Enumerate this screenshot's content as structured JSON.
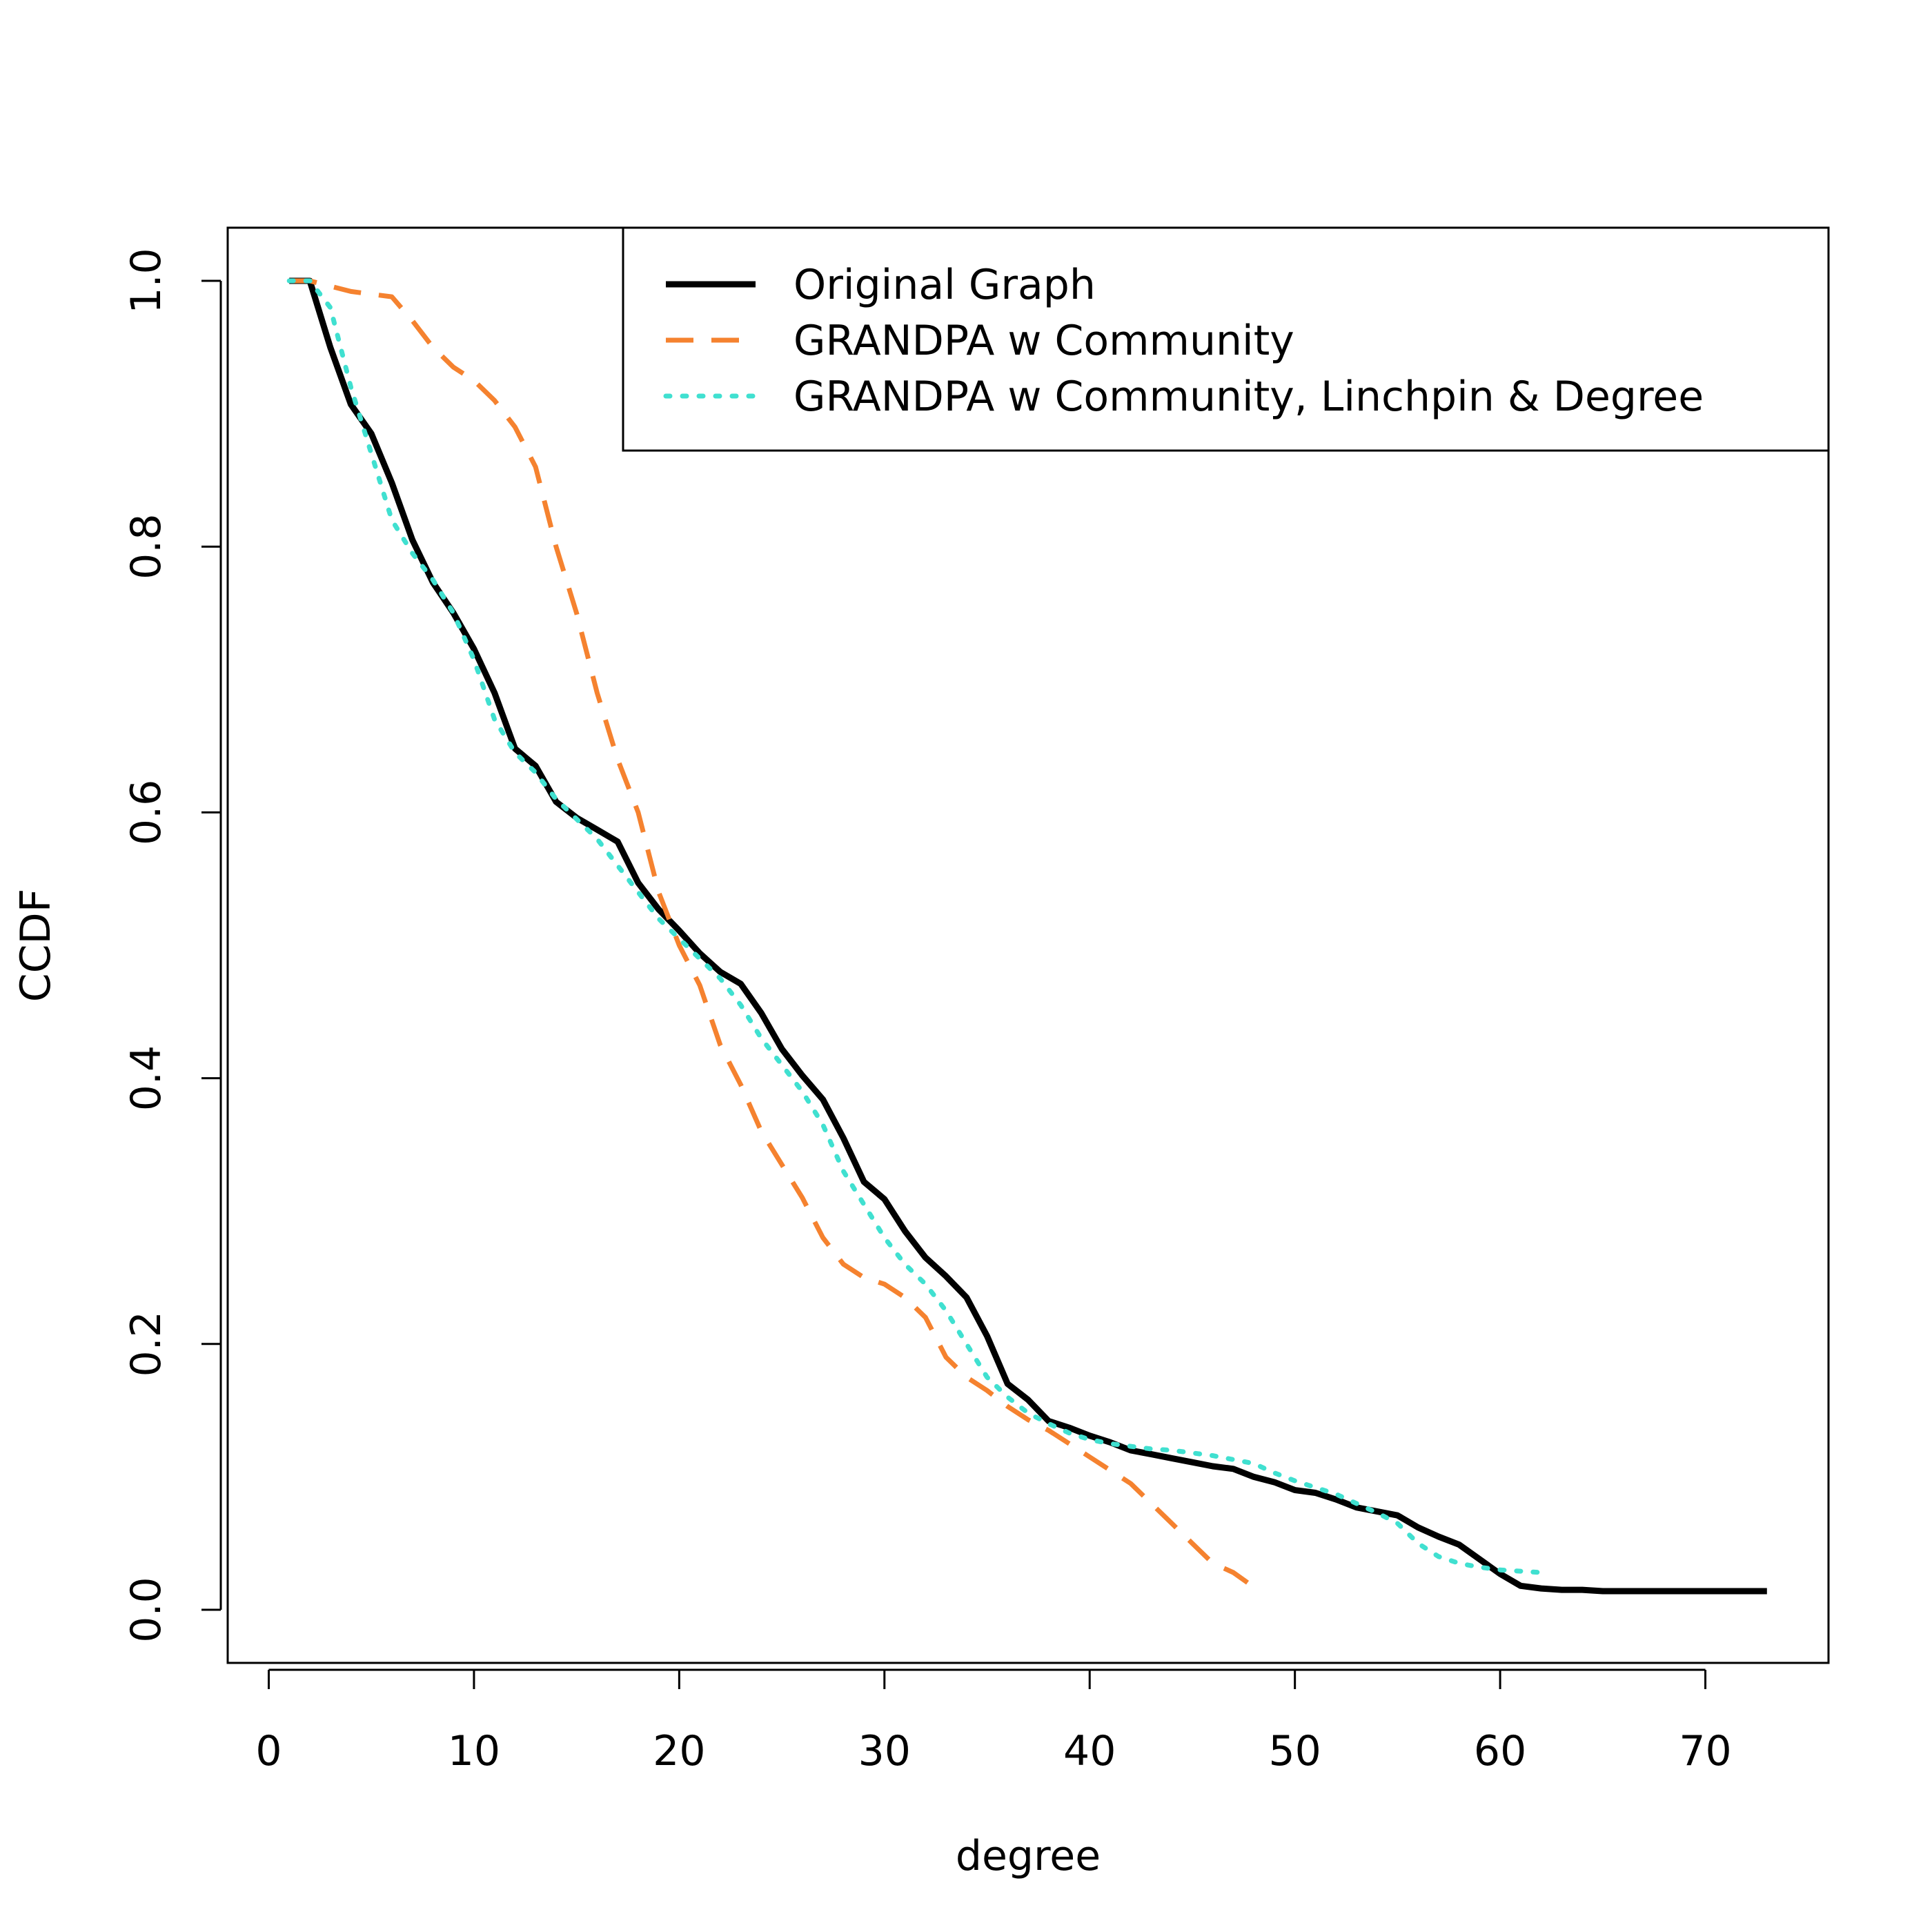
{
  "chart_data": {
    "type": "line",
    "title": "",
    "xlabel": "degree",
    "ylabel": "CCDF",
    "xlim": [
      -2,
      76
    ],
    "ylim": [
      -0.04,
      1.04
    ],
    "xticks": [
      0,
      10,
      20,
      30,
      40,
      50,
      60,
      70
    ],
    "yticks": [
      0.0,
      0.2,
      0.4,
      0.6,
      0.8,
      1.0
    ],
    "xtick_labels": [
      "0",
      "10",
      "20",
      "30",
      "40",
      "50",
      "60",
      "70"
    ],
    "ytick_labels": [
      "0.0",
      "0.2",
      "0.4",
      "0.6",
      "0.8",
      "1.0"
    ],
    "grid": false,
    "legend_position": "top-right",
    "series": [
      {
        "name": "Original Graph",
        "color": "#000000",
        "style": "solid",
        "x": [
          1,
          2,
          3,
          4,
          5,
          6,
          7,
          8,
          9,
          10,
          11,
          12,
          13,
          14,
          15,
          16,
          17,
          18,
          19,
          20,
          21,
          22,
          23,
          24,
          25,
          26,
          27,
          28,
          29,
          30,
          31,
          32,
          33,
          34,
          35,
          36,
          37,
          38,
          39,
          40,
          41,
          42,
          43,
          44,
          45,
          46,
          47,
          48,
          49,
          50,
          51,
          52,
          53,
          54,
          55,
          56,
          57,
          58,
          59,
          60,
          61,
          62,
          63,
          64,
          65,
          66,
          67,
          68,
          69,
          70,
          71,
          72,
          73
        ],
        "values": [
          1.0,
          1.0,
          0.95,
          0.907,
          0.885,
          0.848,
          0.805,
          0.773,
          0.75,
          0.723,
          0.69,
          0.648,
          0.635,
          0.608,
          0.596,
          0.587,
          0.578,
          0.547,
          0.527,
          0.511,
          0.494,
          0.48,
          0.471,
          0.449,
          0.422,
          0.402,
          0.384,
          0.355,
          0.322,
          0.309,
          0.285,
          0.265,
          0.251,
          0.235,
          0.206,
          0.17,
          0.158,
          0.142,
          0.137,
          0.131,
          0.126,
          0.12,
          0.117,
          0.114,
          0.111,
          0.108,
          0.106,
          0.1,
          0.096,
          0.09,
          0.088,
          0.083,
          0.077,
          0.074,
          0.071,
          0.062,
          0.055,
          0.049,
          0.038,
          0.027,
          0.018,
          0.016,
          0.015,
          0.015,
          0.014,
          0.014,
          0.014,
          0.014,
          0.014,
          0.014,
          0.014,
          0.014,
          0.014
        ]
      },
      {
        "name": "GRANDPA w Community",
        "color": "#F5822F",
        "style": "dashed",
        "x": [
          1,
          2,
          3,
          4,
          5,
          6,
          7,
          8,
          9,
          10,
          11,
          12,
          13,
          14,
          15,
          16,
          17,
          18,
          19,
          20,
          21,
          22,
          23,
          24,
          25,
          26,
          27,
          28,
          29,
          30,
          31,
          32,
          33,
          34,
          35,
          36,
          37,
          38,
          39,
          40,
          41,
          42,
          43,
          44,
          45,
          46,
          47,
          48
        ],
        "values": [
          1.0,
          1.0,
          0.996,
          0.992,
          0.99,
          0.988,
          0.97,
          0.95,
          0.935,
          0.925,
          0.91,
          0.89,
          0.86,
          0.8,
          0.75,
          0.69,
          0.64,
          0.6,
          0.54,
          0.5,
          0.47,
          0.425,
          0.395,
          0.36,
          0.335,
          0.31,
          0.28,
          0.26,
          0.25,
          0.245,
          0.235,
          0.22,
          0.19,
          0.175,
          0.165,
          0.153,
          0.143,
          0.135,
          0.125,
          0.115,
          0.105,
          0.095,
          0.08,
          0.065,
          0.05,
          0.035,
          0.028,
          0.017
        ]
      },
      {
        "name": "GRANDPA w Community, Linchpin & Degree",
        "color": "#40E0D0",
        "style": "dotted",
        "x": [
          1,
          2,
          3,
          4,
          5,
          6,
          7,
          8,
          9,
          10,
          11,
          12,
          13,
          14,
          15,
          16,
          17,
          18,
          19,
          20,
          21,
          22,
          23,
          24,
          25,
          26,
          27,
          28,
          29,
          30,
          31,
          32,
          33,
          34,
          35,
          36,
          37,
          38,
          39,
          40,
          41,
          42,
          43,
          44,
          45,
          46,
          47,
          48,
          49,
          50,
          51,
          52,
          53,
          54,
          55,
          56,
          57,
          58,
          59,
          60,
          61,
          62
        ],
        "values": [
          1.0,
          1.0,
          0.98,
          0.92,
          0.87,
          0.82,
          0.795,
          0.775,
          0.75,
          0.715,
          0.67,
          0.645,
          0.63,
          0.61,
          0.595,
          0.58,
          0.56,
          0.54,
          0.52,
          0.505,
          0.49,
          0.475,
          0.455,
          0.43,
          0.41,
          0.39,
          0.365,
          0.33,
          0.305,
          0.28,
          0.26,
          0.245,
          0.225,
          0.2,
          0.175,
          0.16,
          0.148,
          0.14,
          0.133,
          0.128,
          0.125,
          0.123,
          0.121,
          0.12,
          0.118,
          0.116,
          0.113,
          0.11,
          0.103,
          0.097,
          0.092,
          0.087,
          0.08,
          0.073,
          0.065,
          0.05,
          0.04,
          0.035,
          0.032,
          0.03,
          0.029,
          0.028
        ]
      }
    ]
  }
}
